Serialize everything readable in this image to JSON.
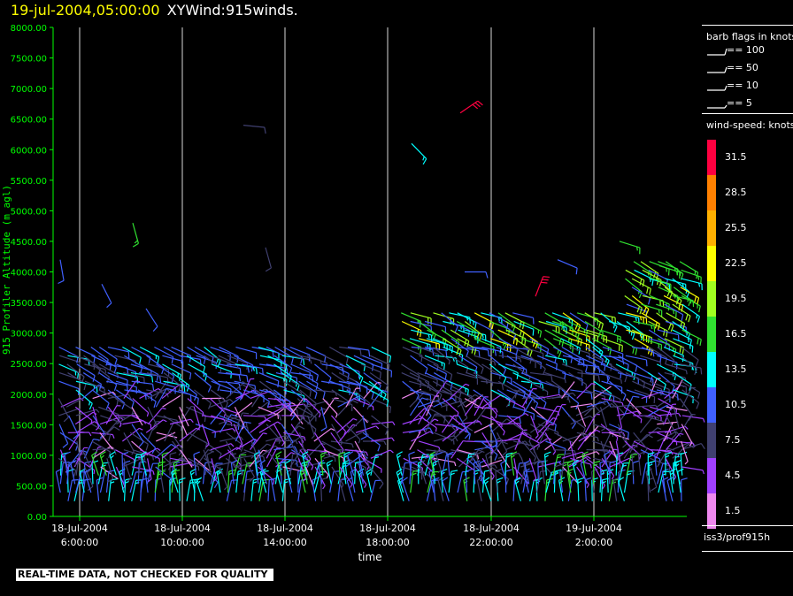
{
  "header": {
    "date_text": "19-jul-2004,05:00:00",
    "plot_name": "XYWind:915winds."
  },
  "footer": {
    "quality_note": "REAL-TIME DATA, NOT CHECKED FOR QUALITY",
    "station": "iss3/prof915h"
  },
  "legend": {
    "barb_title": "barb flags in knots",
    "barb_entries": [
      "== 100",
      "== 50",
      "== 10",
      "== 5"
    ],
    "speed_title": "wind-speed: knots",
    "speed_scale": [
      {
        "label": "31.5",
        "color": "#ff0040"
      },
      {
        "label": "28.5",
        "color": "#ff8000"
      },
      {
        "label": "25.5",
        "color": "#ffb000"
      },
      {
        "label": "22.5",
        "color": "#ffff00"
      },
      {
        "label": "19.5",
        "color": "#a0ff20"
      },
      {
        "label": "16.5",
        "color": "#30e030"
      },
      {
        "label": "13.5",
        "color": "#00ffff"
      },
      {
        "label": "10.5",
        "color": "#4060ff"
      },
      {
        "label": "7.5",
        "color": "#404070"
      },
      {
        "label": "4.5",
        "color": "#a040ff"
      },
      {
        "label": "1.5",
        "color": "#ee88ee"
      }
    ]
  },
  "chart_data": {
    "type": "scatter",
    "ylabel": "915 Profiler Altitude (m agl)",
    "xlabel": "time",
    "ylim": [
      0,
      8000
    ],
    "y_ticks": [
      "0.00",
      "500.00",
      "1000.00",
      "1500.00",
      "2000.00",
      "2500.00",
      "3000.00",
      "3500.00",
      "4000.00",
      "4500.00",
      "5000.00",
      "5500.00",
      "6000.00",
      "6500.00",
      "7000.00",
      "7500.00",
      "8000.00"
    ],
    "x_ticks": [
      {
        "line1": "18-Jul-2004",
        "line2": "6:00:00"
      },
      {
        "line1": "18-Jul-2004",
        "line2": "10:00:00"
      },
      {
        "line1": "18-Jul-2004",
        "line2": "14:00:00"
      },
      {
        "line1": "18-Jul-2004",
        "line2": "18:00:00"
      },
      {
        "line1": "18-Jul-2004",
        "line2": "22:00:00"
      },
      {
        "line1": "19-Jul-2004",
        "line2": "2:00:00"
      }
    ],
    "grid": "vertical lines at time ticks",
    "colors": {
      "axis": "#00ff00",
      "grid": "#ffffff"
    }
  }
}
